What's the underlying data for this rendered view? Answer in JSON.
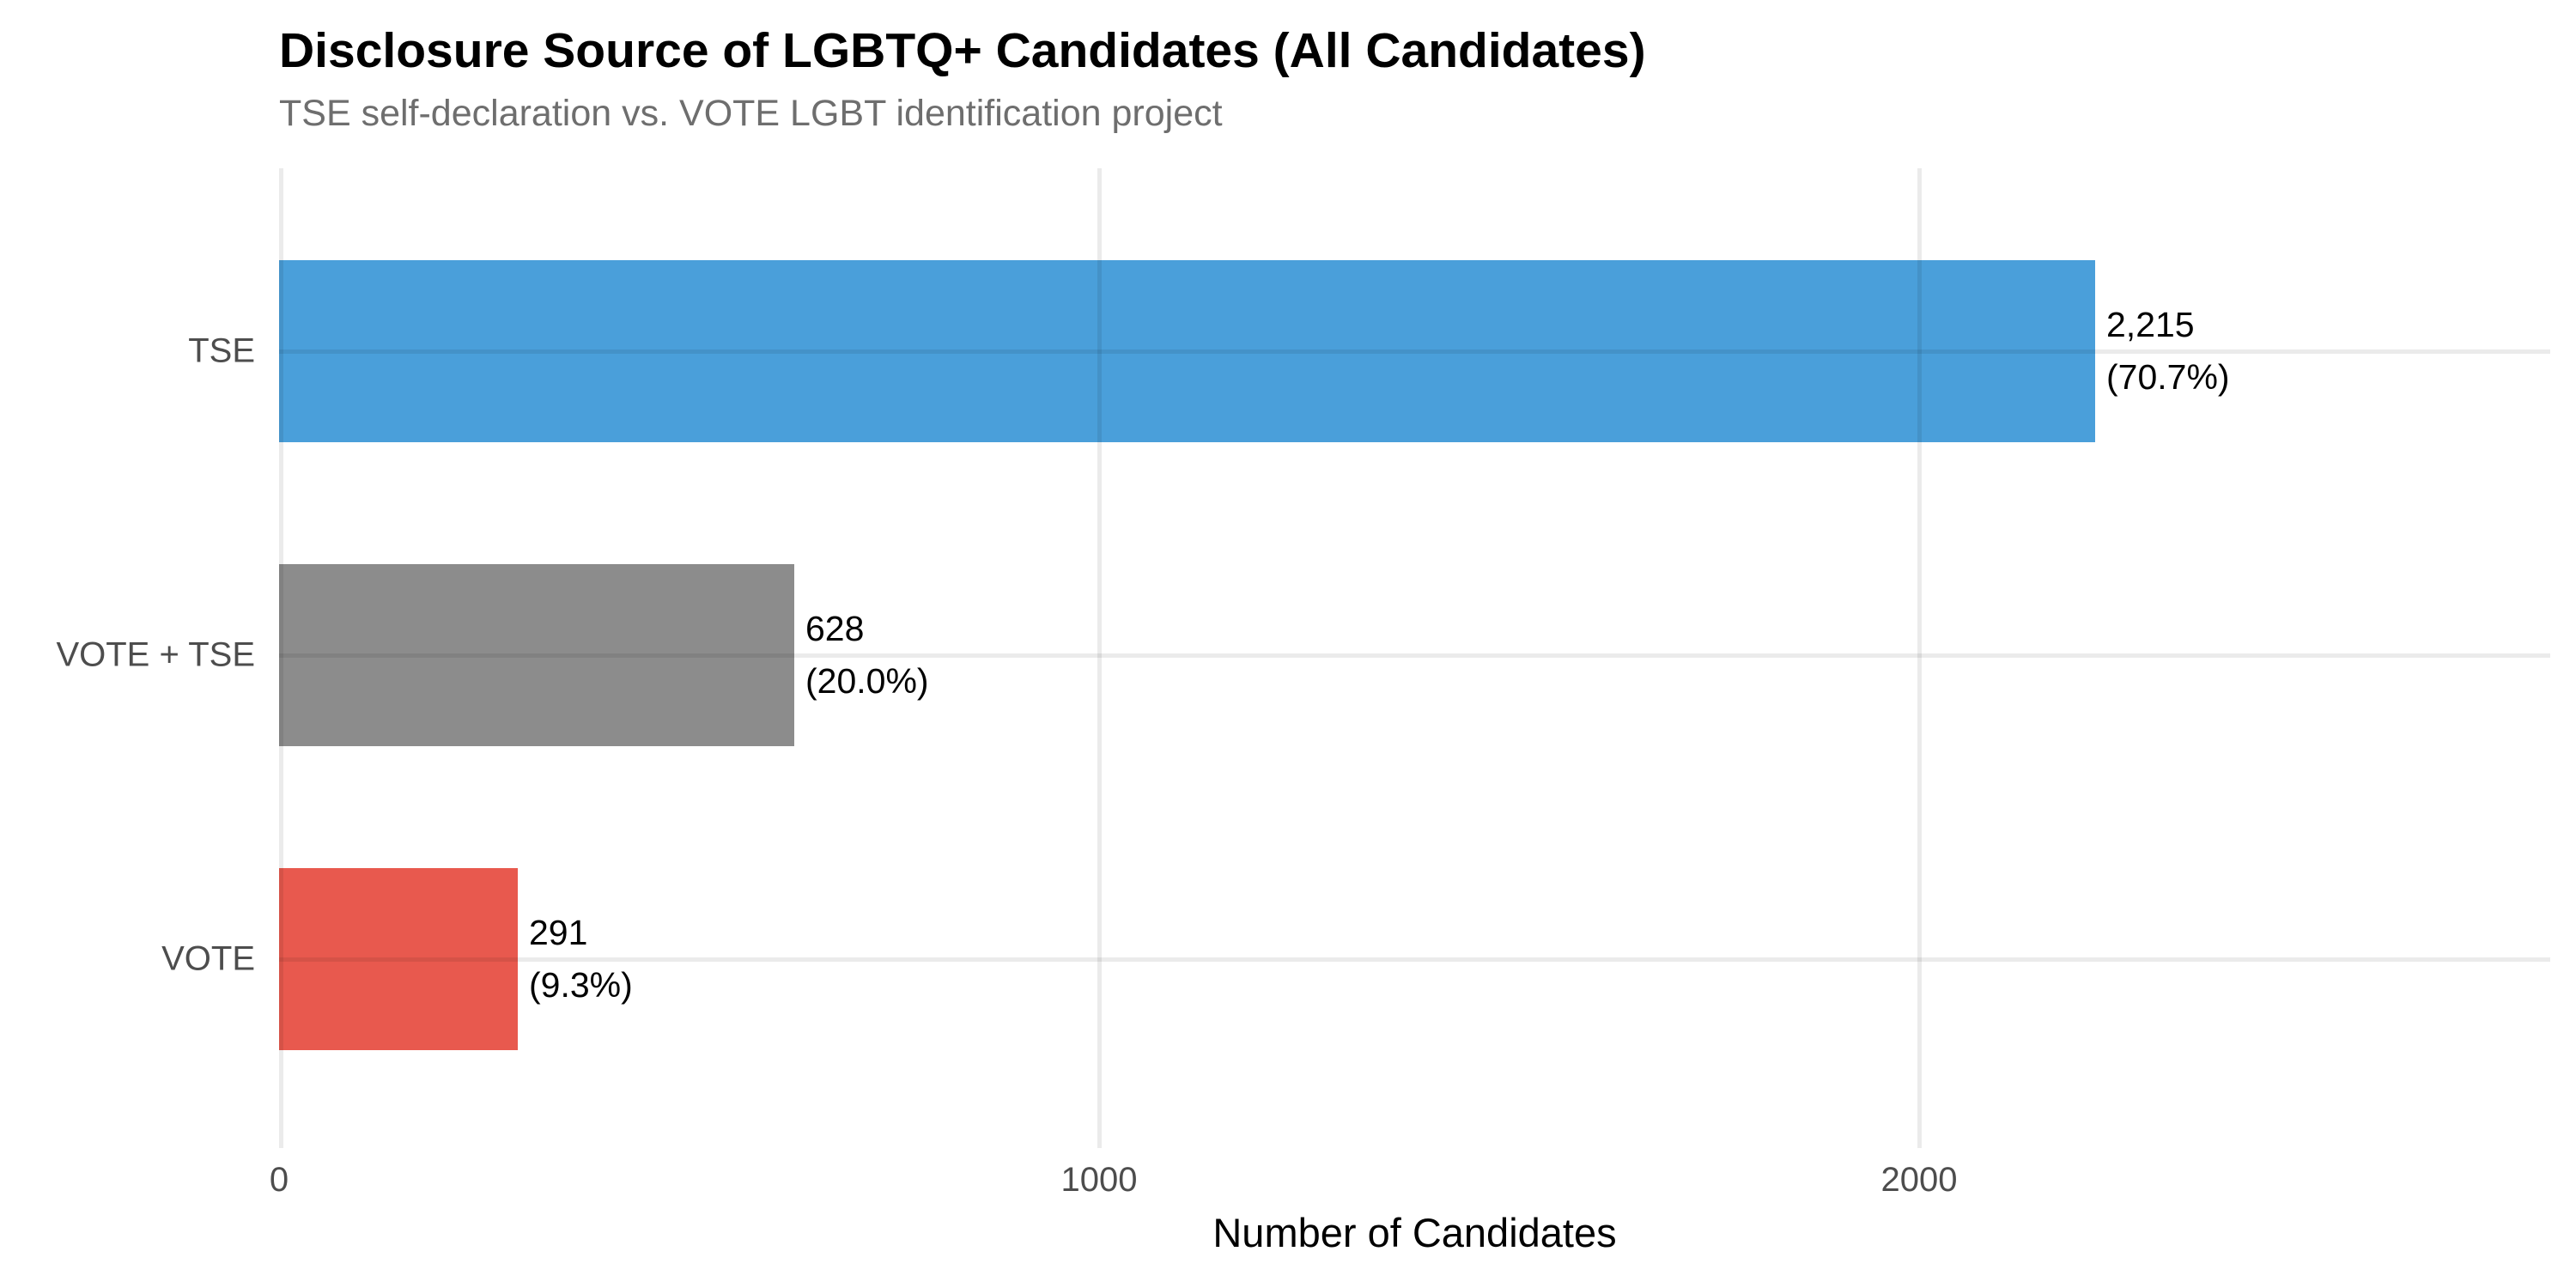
{
  "chart_data": {
    "type": "bar",
    "orientation": "horizontal",
    "title": "Disclosure Source of LGBTQ+ Candidates (All Candidates)",
    "subtitle": "TSE self-declaration vs. VOTE LGBT identification project",
    "xlabel": "Number of Candidates",
    "ylabel": "",
    "categories": [
      "TSE",
      "VOTE + TSE",
      "VOTE"
    ],
    "values": [
      2215,
      628,
      291
    ],
    "value_labels": [
      "2,215",
      "628",
      "291"
    ],
    "pct_labels": [
      "(70.7%)",
      "(20.0%)",
      "(9.3%)"
    ],
    "bar_colors": [
      "#4a9fda",
      "#8c8c8c",
      "#e8594e"
    ],
    "xticks": [
      0,
      1000,
      2000
    ],
    "xtick_labels": [
      "0",
      "1000",
      "2000"
    ],
    "xlim": [
      0,
      2770
    ],
    "grid": "major-only",
    "gridline_color": "rgba(0,0,0,0.08)",
    "legend": false,
    "axis_text_color": "#4d4d4d",
    "subtitle_color": "#6e6e6e",
    "label_text_color": "#000000"
  }
}
